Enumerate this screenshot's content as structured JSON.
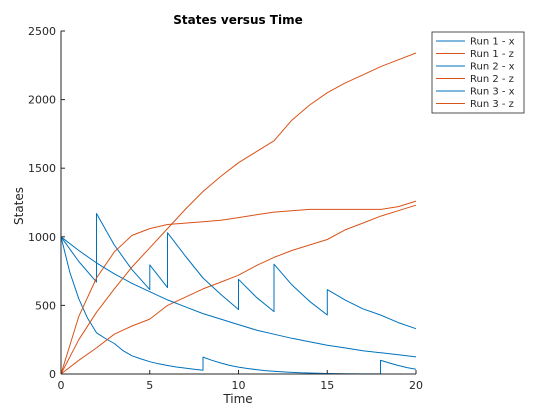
{
  "chart_data": {
    "type": "line",
    "title": "States versus Time",
    "xlabel": "Time",
    "ylabel": "States",
    "xlim": [
      0,
      20
    ],
    "ylim": [
      0,
      2500
    ],
    "xticks": [
      0,
      5,
      10,
      15,
      20
    ],
    "yticks": [
      0,
      500,
      1000,
      1500,
      2000,
      2500
    ],
    "grid": false,
    "legend_position": "top-right",
    "series": [
      {
        "name": "Run 1 - x",
        "color": "#0072BD",
        "x": [
          0,
          0.5,
          1,
          1.5,
          2,
          2.5,
          3,
          3.5,
          4,
          4.5,
          5,
          5.5,
          6,
          6.5,
          7,
          7.5,
          8,
          8,
          8.5,
          9,
          9.5,
          10,
          10.5,
          11,
          11.5,
          12,
          12.5,
          13,
          13.5,
          14,
          15,
          16,
          17,
          18,
          18,
          18.5,
          19,
          19.5,
          20
        ],
        "y": [
          1000,
          740,
          548,
          406,
          300,
          259,
          222,
          170,
          133,
          110,
          90,
          74,
          62,
          51,
          43,
          35,
          28,
          123,
          100,
          80,
          63,
          50,
          40,
          32,
          25,
          20,
          15,
          12,
          9,
          7,
          4,
          2,
          1,
          1,
          100,
          80,
          62,
          47,
          35
        ]
      },
      {
        "name": "Run 1 - z",
        "color": "#D95319",
        "x": [
          0,
          1,
          2,
          3,
          4,
          5,
          6,
          7,
          8,
          9,
          10,
          11,
          12,
          13,
          14,
          15,
          16,
          17,
          18,
          19,
          20
        ],
        "y": [
          0,
          100,
          190,
          290,
          350,
          400,
          500,
          560,
          620,
          670,
          720,
          790,
          850,
          900,
          940,
          980,
          1050,
          1100,
          1150,
          1190,
          1230
        ]
      },
      {
        "name": "Run 2 - x",
        "color": "#0072BD",
        "x": [
          0,
          1,
          2,
          2,
          3,
          4,
          5,
          5,
          6,
          6,
          7,
          8,
          9,
          10,
          10,
          11,
          12,
          12,
          13,
          14,
          15,
          15,
          16,
          17,
          18,
          19,
          20
        ],
        "y": [
          1000,
          820,
          670,
          1170,
          940,
          760,
          615,
          795,
          630,
          1030,
          860,
          700,
          580,
          470,
          690,
          560,
          455,
          800,
          650,
          530,
          430,
          615,
          540,
          475,
          430,
          375,
          330
        ]
      },
      {
        "name": "Run 2 - z",
        "color": "#D95319",
        "x": [
          0,
          1,
          2,
          3,
          4,
          5,
          6,
          7,
          8,
          9,
          10,
          11,
          12,
          13,
          14,
          15,
          16,
          17,
          18,
          19,
          20
        ],
        "y": [
          0,
          420,
          700,
          890,
          1010,
          1060,
          1090,
          1100,
          1110,
          1120,
          1140,
          1160,
          1180,
          1190,
          1200,
          1200,
          1200,
          1200,
          1200,
          1220,
          1260
        ]
      },
      {
        "name": "Run 3 - x",
        "color": "#0072BD",
        "x": [
          0,
          1,
          2,
          3,
          4,
          5,
          6,
          7,
          8,
          9,
          10,
          11,
          12,
          13,
          14,
          15,
          16,
          17,
          18,
          19,
          20
        ],
        "y": [
          1000,
          900,
          810,
          730,
          660,
          600,
          540,
          490,
          440,
          400,
          360,
          320,
          290,
          260,
          235,
          210,
          190,
          170,
          155,
          140,
          125
        ]
      },
      {
        "name": "Run 3 - z",
        "color": "#D95319",
        "x": [
          0,
          1,
          2,
          3,
          4,
          5,
          6,
          7,
          8,
          9,
          10,
          11,
          12,
          13,
          14,
          15,
          16,
          17,
          18,
          19,
          20
        ],
        "y": [
          0,
          250,
          450,
          620,
          780,
          920,
          1060,
          1200,
          1330,
          1440,
          1540,
          1620,
          1700,
          1850,
          1960,
          2050,
          2120,
          2180,
          2240,
          2290,
          2340
        ]
      }
    ]
  }
}
